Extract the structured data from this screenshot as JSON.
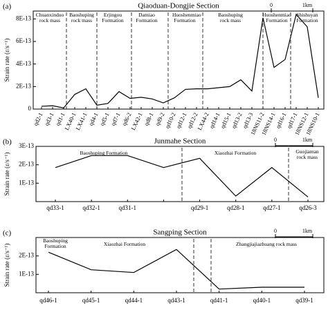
{
  "chart_data": [
    {
      "type": "line",
      "panel": "(a)",
      "title": "Qiaoduan-Dongjie Section",
      "y_label": "Strain rate (ε/s⁻¹)",
      "categories": [
        "qd2-1",
        "qd3-1",
        "qd1-1",
        "LX40-1",
        "LX41-1",
        "qd4-1",
        "qd5-1",
        "qd7-1",
        "qd6-2",
        "LX42-1",
        "qd8-1",
        "qd9-2",
        "qd10-2",
        "qd12-1",
        "qd12-2",
        "LX44-2",
        "qd14-1",
        "qd15-1",
        "qd13-2",
        "qd13-3",
        "18NS11-2",
        "18NS14-1",
        "qd16-1",
        "qd17-1",
        "18NS12-1",
        "18NS10-1"
      ],
      "values": [
        2.5e-14,
        3e-14,
        1e-14,
        1.3e-13,
        1.8e-13,
        3.5e-14,
        5e-14,
        1.55e-13,
        9.5e-14,
        1.05e-13,
        9e-14,
        5.5e-14,
        1e-13,
        1.75e-13,
        1.8e-13,
        1.8e-13,
        1.9e-13,
        2e-13,
        2.6e-13,
        1.6e-13,
        8.1e-13,
        3.7e-13,
        4.4e-13,
        8.4e-13,
        7.3e-13,
        1e-13
      ],
      "color": "#000000",
      "ylim": [
        0,
        8.7e-13
      ],
      "yticks": [
        0,
        {
          "value": 2e-13,
          "label": "2E-13"
        },
        {
          "value": 4e-13,
          "label": "4E-13"
        },
        {
          "value": 6e-13,
          "label": "6E-13"
        },
        {
          "value": 8e-13,
          "label": "8E-13"
        }
      ],
      "annotations": [
        "Chuanxinduo rock mass",
        "Baoshuping rock mass",
        "Erjingou Formation",
        "Damiao Formation",
        "Huoshenmiao Formation",
        "Baoshuping rock mass",
        "Huoshenmiao Formation",
        "Shishuyan Formation"
      ],
      "scale_labels": [
        "0",
        "1km"
      ]
    },
    {
      "type": "line",
      "panel": "(b)",
      "title": "Junmahe Section",
      "y_label": "Strain rate (ε/s⁻¹)",
      "categories": [
        "qd33-1",
        "qd32-1",
        "qd31-1",
        null,
        "qd29-1",
        "qd28-1",
        "qd27-1",
        "qd26-3"
      ],
      "values": [
        1.85e-13,
        2.5e-13,
        2.5e-13,
        1.85e-13,
        2.35e-13,
        3e-14,
        1.85e-13,
        2.5e-14
      ],
      "color": "#000000",
      "ylim": [
        0,
        3e-13
      ],
      "yticks": [
        {
          "value": 1e-13,
          "label": "1E-13"
        },
        {
          "value": 2e-13,
          "label": "2E-13"
        },
        {
          "value": 3e-13,
          "label": "3E-13"
        }
      ],
      "annotations": [
        "Baoshuping Formation",
        "Xiaozhai Formation",
        "Guojiaman rock mass"
      ],
      "scale_labels": [
        "0",
        "1km"
      ]
    },
    {
      "type": "line",
      "panel": "(c)",
      "title": "Sangping Section",
      "y_label": "Strain rate (ε/s⁻¹)",
      "categories": [
        "qd46-1",
        "qd45-1",
        "qd44-1",
        "qd43-1",
        "qd41-1",
        "qd40-1",
        "qd39-1"
      ],
      "values": [
        2.2e-13,
        1.25e-13,
        1.1e-13,
        2.35e-13,
        2e-14,
        3e-14,
        3e-14
      ],
      "color": "#000000",
      "ylim": [
        0,
        3e-13
      ],
      "yticks": [
        {
          "value": 1e-13,
          "label": "1E-13"
        },
        {
          "value": 2e-13,
          "label": "2E-13"
        }
      ],
      "annotations": [
        "Baoshuping Formation",
        "Xiaozhai Formation",
        "Zhangjiajiazhuang rock mass"
      ],
      "scale_labels": [
        "0",
        "1km"
      ]
    }
  ]
}
